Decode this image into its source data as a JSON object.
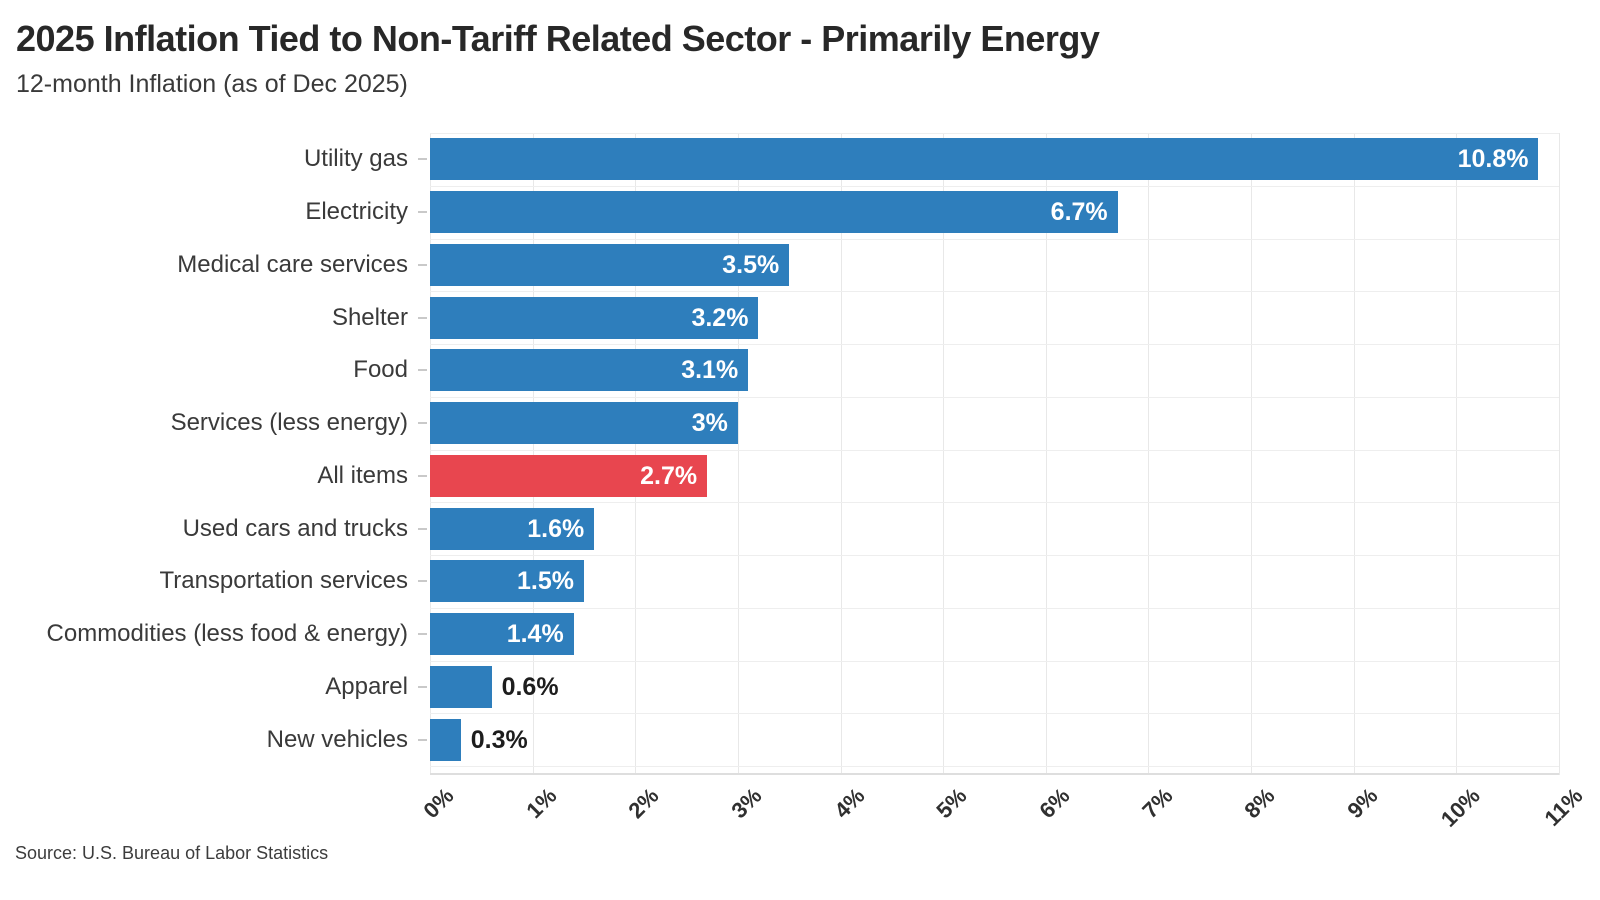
{
  "chart_data": {
    "type": "bar",
    "orientation": "horizontal",
    "title": "2025 Inflation Tied to Non-Tariff Related Sector - Primarily Energy",
    "subtitle": "12-month Inflation (as of Dec 2025)",
    "source": "Source: U.S. Bureau of Labor Statistics",
    "xlabel": "",
    "ylabel": "",
    "xlim": [
      0,
      11
    ],
    "x_ticks": [
      "0%",
      "1%",
      "2%",
      "3%",
      "4%",
      "5%",
      "6%",
      "7%",
      "8%",
      "9%",
      "10%",
      "11%"
    ],
    "grid": true,
    "legend": "none",
    "categories": [
      "Utility gas",
      "Electricity",
      "Medical care services",
      "Shelter",
      "Food",
      "Services (less energy)",
      "All items",
      "Used cars and trucks",
      "Transportation services",
      "Commodities (less food & energy)",
      "Apparel",
      "New vehicles"
    ],
    "values": [
      10.8,
      6.7,
      3.5,
      3.2,
      3.1,
      3.0,
      2.7,
      1.6,
      1.5,
      1.4,
      0.6,
      0.3
    ],
    "value_labels": [
      "10.8%",
      "6.7%",
      "3.5%",
      "3.2%",
      "3.1%",
      "3%",
      "2.7%",
      "1.6%",
      "1.5%",
      "1.4%",
      "0.6%",
      "0.3%"
    ],
    "highlight_category": "All items",
    "highlight_index": 6,
    "colors": {
      "bar": "#2e7ebc",
      "highlight_bar": "#e8464f",
      "value_label_inside": "#ffffff",
      "value_label_outside": "#1d1d1d"
    }
  }
}
